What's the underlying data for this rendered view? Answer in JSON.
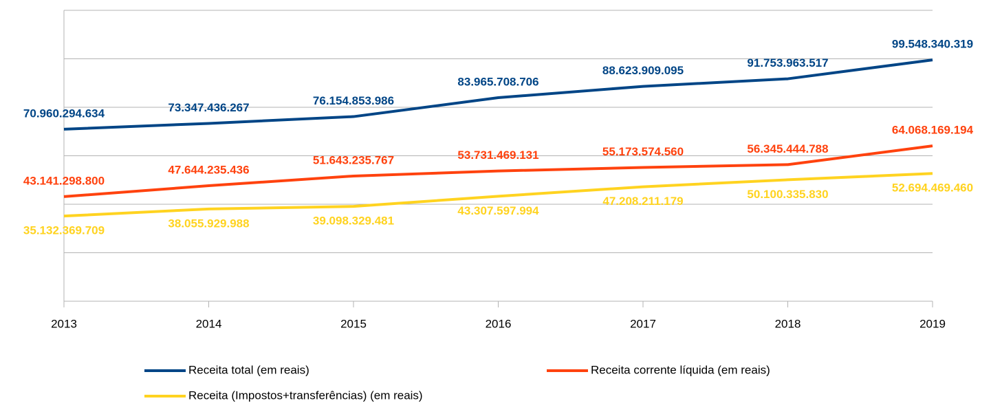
{
  "chart_data": {
    "type": "line",
    "x": [
      2013,
      2014,
      2015,
      2016,
      2017,
      2018,
      2019
    ],
    "xlim": [
      2013,
      2019
    ],
    "xticks": [
      2013,
      2014,
      2015,
      2016,
      2017,
      2018,
      2019
    ],
    "ylim": [
      0,
      120000000000
    ],
    "yticks": [
      0,
      20000000000,
      40000000000,
      60000000000,
      80000000000,
      100000000000,
      120000000000
    ],
    "grid": true,
    "series": [
      {
        "name": "Receita total (em reais)",
        "color": "#004586",
        "values": [
          70960294634,
          73347436267,
          76154853986,
          83965708706,
          88623909095,
          91753963517,
          99548340319
        ],
        "value_labels": [
          "70.960.294.634",
          "73.347.436.267",
          "76.154.853.986",
          "83.965.708.706",
          "88.623.909.095",
          "91.753.963.517",
          "99.548.340.319"
        ]
      },
      {
        "name": "Receita corrente líquida (em reais)",
        "color": "#ff420e",
        "values": [
          43141298800,
          47644235436,
          51643235767,
          53731469131,
          55173574560,
          56345444788,
          64068169194
        ],
        "value_labels": [
          "43.141.298.800",
          "47.644.235.436",
          "51.643.235.767",
          "53.731.469.131",
          "55.173.574.560",
          "56.345.444.788",
          "64.068.169.194"
        ]
      },
      {
        "name": "Receita (Impostos+transferências) (em reais)",
        "color": "#ffd320",
        "values": [
          35132369709,
          38055929988,
          39098329481,
          43307597994,
          47208211179,
          50100335830,
          52694469460
        ],
        "value_labels": [
          "35.132.369.709",
          "38.055.929.988",
          "39.098.329.481",
          "43.307.597.994",
          "47.208.211.179",
          "50.100.335.830",
          "52.694.469.460"
        ]
      }
    ]
  }
}
